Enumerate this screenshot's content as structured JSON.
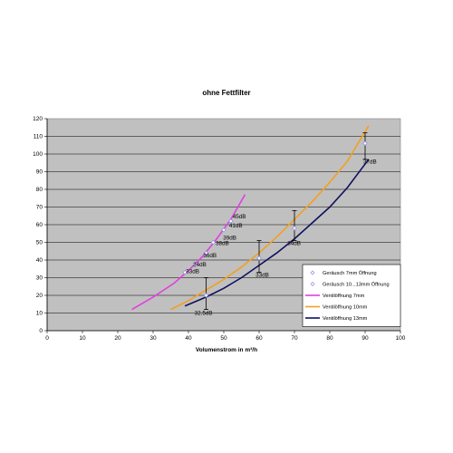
{
  "chart_data": {
    "type": "line",
    "title": "ohne Fettfilter",
    "xlabel": "Volumenstrom in m³/h",
    "ylabel": "",
    "xlim": [
      0,
      100
    ],
    "ylim": [
      0,
      120
    ],
    "xticks": [
      "0",
      "10",
      "20",
      "30",
      "40",
      "50",
      "60",
      "70",
      "80",
      "90",
      "100"
    ],
    "yticks": [
      "0",
      "10",
      "20",
      "30",
      "40",
      "50",
      "60",
      "70",
      "80",
      "90",
      "100",
      "110",
      "120"
    ],
    "grid": true,
    "legend_position": "right",
    "background": "#c0c0c0",
    "series": [
      {
        "name": "Geräusch 7mm Öffnung",
        "kind": "scatter",
        "color": "#8a8ae0",
        "x": [
          39,
          42,
          45,
          47,
          50,
          52
        ],
        "y": [
          33,
          37,
          44,
          50,
          57,
          62
        ]
      },
      {
        "name": "Geräusch 10...13mm Öffnung",
        "kind": "scatter",
        "color": "#8a8ae0",
        "x": [
          45,
          60,
          70,
          90
        ],
        "y": [
          20,
          41,
          58,
          106
        ]
      },
      {
        "name": "Ventilöffnung 7mm",
        "kind": "line",
        "color": "#e040e0",
        "x": [
          24,
          30,
          36,
          40,
          44,
          48,
          52,
          56
        ],
        "y": [
          12,
          19,
          27,
          34,
          42,
          52,
          63,
          77
        ]
      },
      {
        "name": "Ventilöffnung 10mm",
        "kind": "line",
        "color": "#f2a020",
        "x": [
          35,
          40,
          45,
          50,
          55,
          60,
          65,
          70,
          75,
          80,
          85,
          91
        ],
        "y": [
          12,
          17,
          23,
          29,
          36,
          44,
          53,
          63,
          73,
          84,
          96,
          116
        ]
      },
      {
        "name": "Ventilöffnung 13mm",
        "kind": "line",
        "color": "#101060",
        "x": [
          39,
          45,
          50,
          55,
          60,
          65,
          70,
          75,
          80,
          85,
          91
        ],
        "y": [
          14,
          19,
          24,
          30,
          37,
          44,
          52,
          61,
          70,
          81,
          97
        ]
      }
    ],
    "error_bars": [
      {
        "x": 45,
        "low": 12,
        "high": 30
      },
      {
        "x": 60,
        "low": 33,
        "high": 51
      },
      {
        "x": 70,
        "low": 51,
        "high": 68
      },
      {
        "x": 90,
        "low": 97,
        "high": 112
      }
    ],
    "annotations": [
      {
        "text": "45dB",
        "x": 52.5,
        "y": 63.5
      },
      {
        "text": "41dB",
        "x": 51.5,
        "y": 58.5
      },
      {
        "text": "39dB",
        "x": 49.8,
        "y": 51.5
      },
      {
        "text": "38dB",
        "x": 47.7,
        "y": 48.5
      },
      {
        "text": "36dB",
        "x": 44.2,
        "y": 41.5
      },
      {
        "text": "34dB",
        "x": 41.3,
        "y": 36.5
      },
      {
        "text": "33dB",
        "x": 39.3,
        "y": 32.5
      },
      {
        "text": "32.5dB",
        "x": 41.7,
        "y": 9
      },
      {
        "text": "33dB",
        "x": 59,
        "y": 30.5
      },
      {
        "text": "34dB",
        "x": 68,
        "y": 48.5
      },
      {
        "text": "37dB",
        "x": 89.5,
        "y": 94.5
      }
    ]
  }
}
